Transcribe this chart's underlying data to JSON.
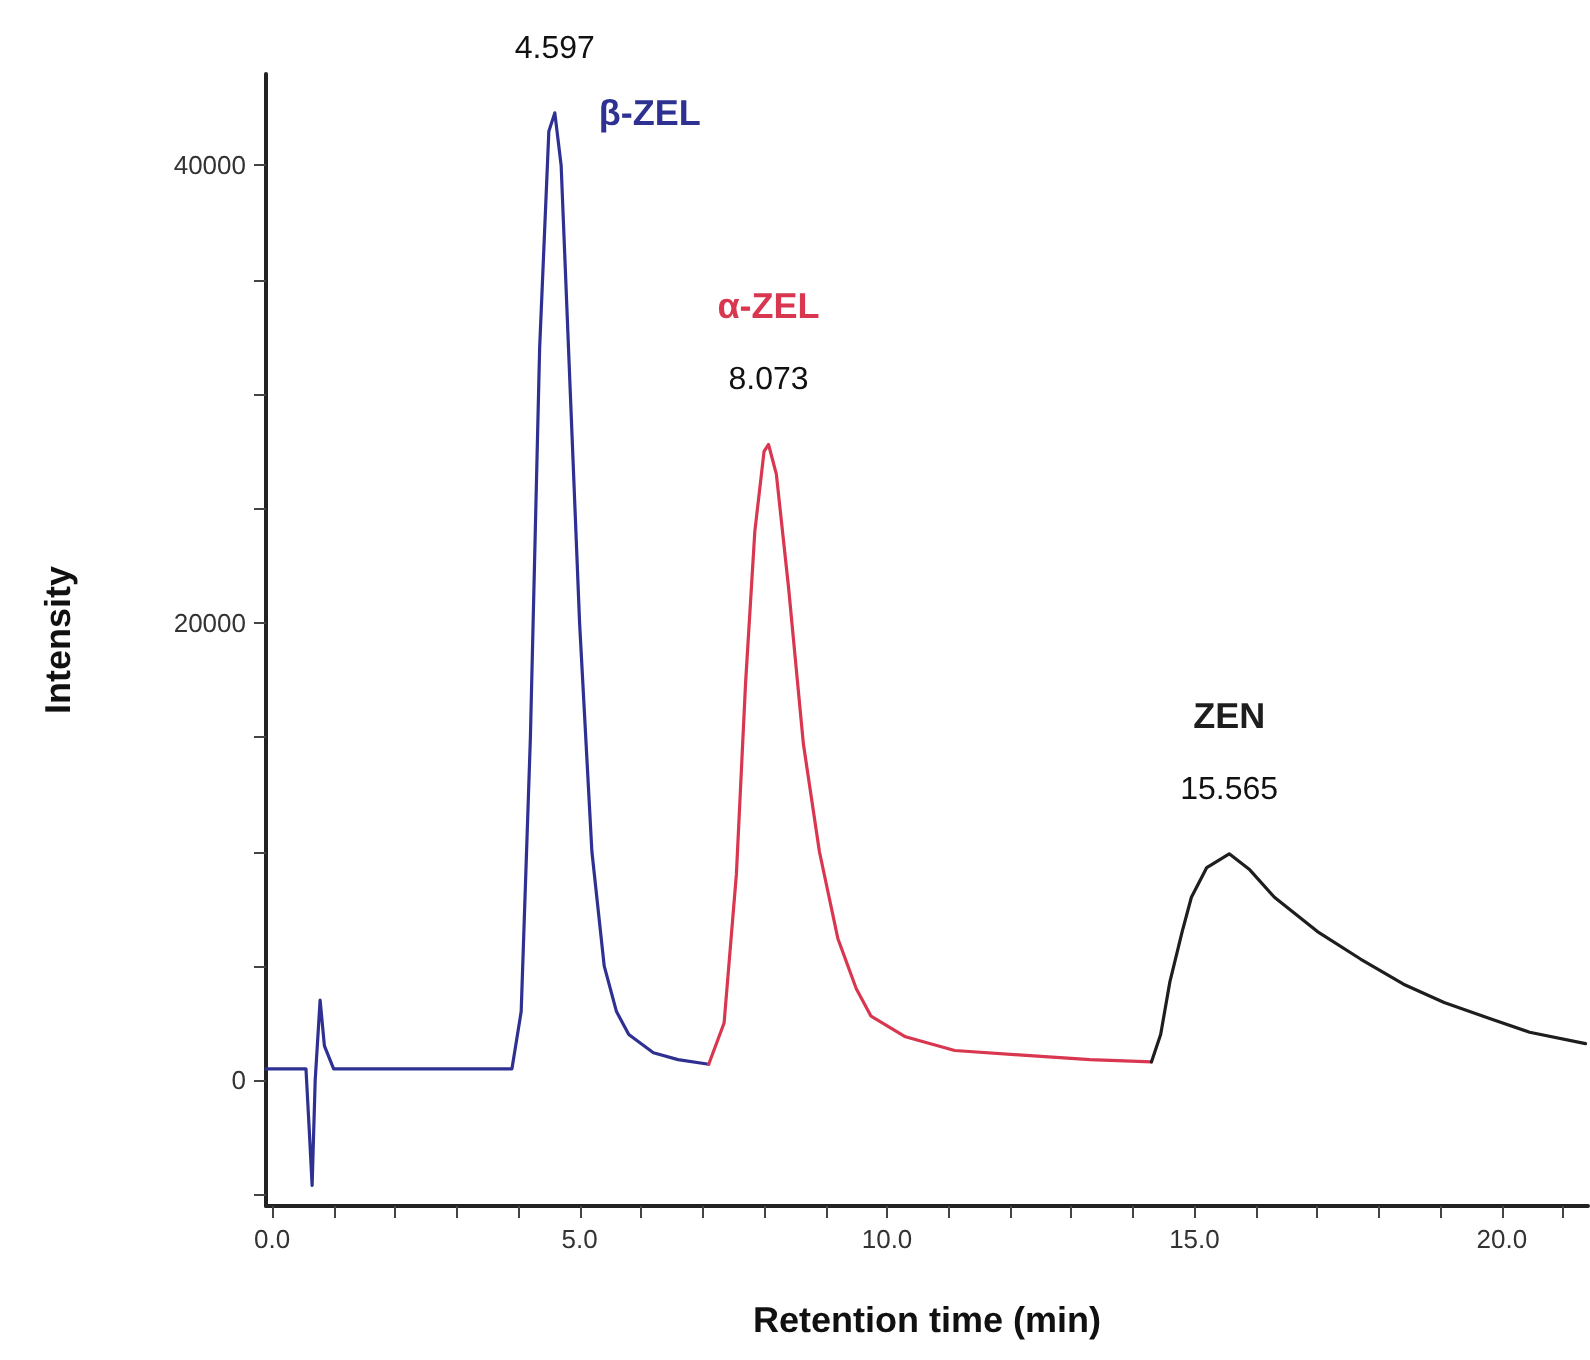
{
  "chart_data": {
    "type": "line",
    "xlabel": "Retention time (min)",
    "ylabel": "Intensity",
    "xlim": [
      -0.1,
      21.4
    ],
    "xticks": [
      {
        "value": 0,
        "label": "0.0"
      },
      {
        "value": 1,
        "label": null
      },
      {
        "value": 2,
        "label": null
      },
      {
        "value": 3,
        "label": null
      },
      {
        "value": 4,
        "label": null
      },
      {
        "value": 5,
        "label": "5.0"
      },
      {
        "value": 6,
        "label": null
      },
      {
        "value": 7,
        "label": null
      },
      {
        "value": 8,
        "label": null
      },
      {
        "value": 9,
        "label": null
      },
      {
        "value": 10,
        "label": "10.0"
      },
      {
        "value": 11,
        "label": null
      },
      {
        "value": 12,
        "label": null
      },
      {
        "value": 13,
        "label": null
      },
      {
        "value": 14,
        "label": null
      },
      {
        "value": 15,
        "label": "15.0"
      },
      {
        "value": 16,
        "label": null
      },
      {
        "value": 17,
        "label": null
      },
      {
        "value": 18,
        "label": null
      },
      {
        "value": 19,
        "label": null
      },
      {
        "value": 20,
        "label": "20.0"
      },
      {
        "value": 21,
        "label": null
      }
    ],
    "ylim": [
      -5500,
      44000
    ],
    "yticks": [
      {
        "value": -5000,
        "label": null
      },
      0,
      {
        "value": 5000,
        "label": null
      },
      {
        "value": 10000,
        "label": null
      },
      {
        "value": 15000,
        "label": null
      },
      20000,
      {
        "value": 25000,
        "label": null
      },
      {
        "value": 30000,
        "label": null
      },
      {
        "value": 35000,
        "label": null
      },
      40000
    ],
    "series": [
      {
        "name": "β-ZEL",
        "color": "#2e3192",
        "x": [
          -0.1,
          0.55,
          0.6,
          0.65,
          0.7,
          0.78,
          0.85,
          1.0,
          3.0,
          3.9,
          4.05,
          4.2,
          4.35,
          4.5,
          4.597,
          4.7,
          4.85,
          5.0,
          5.2,
          5.4,
          5.6,
          5.8,
          6.2,
          6.6,
          7.1
        ],
        "values": [
          500,
          500,
          -2000,
          -4600,
          0,
          3500,
          1500,
          500,
          500,
          500,
          3000,
          15000,
          32000,
          41500,
          42300,
          40000,
          30000,
          20000,
          10000,
          5000,
          3000,
          2000,
          1200,
          900,
          700
        ]
      },
      {
        "name": "α-ZEL",
        "color": "#d9364f",
        "x": [
          7.1,
          7.35,
          7.55,
          7.7,
          7.85,
          8.0,
          8.073,
          8.2,
          8.4,
          8.64,
          8.9,
          9.2,
          9.5,
          9.74,
          10.3,
          11.1,
          12.2,
          13.3,
          14.3
        ],
        "values": [
          700,
          2500,
          9000,
          17400,
          24000,
          27500,
          27800,
          26500,
          21500,
          14700,
          10000,
          6200,
          4000,
          2800,
          1900,
          1300,
          1100,
          900,
          800
        ]
      },
      {
        "name": "ZEN",
        "color": "#1e1e1e",
        "x": [
          14.3,
          14.45,
          14.6,
          14.8,
          14.95,
          15.2,
          15.565,
          15.9,
          16.3,
          17.0,
          17.7,
          18.4,
          19.06,
          19.8,
          20.45,
          21.36
        ],
        "values": [
          800,
          2000,
          4300,
          6500,
          8000,
          9300,
          9900,
          9200,
          8000,
          6500,
          5300,
          4200,
          3400,
          2700,
          2100,
          1600
        ]
      }
    ],
    "annotations": [
      {
        "text": "4.597",
        "x": 4.597,
        "y": 42300
      },
      {
        "text": "8.073",
        "x": 8.073,
        "y": 27800
      },
      {
        "text": "15.565",
        "x": 15.565,
        "y": 9900
      }
    ]
  }
}
